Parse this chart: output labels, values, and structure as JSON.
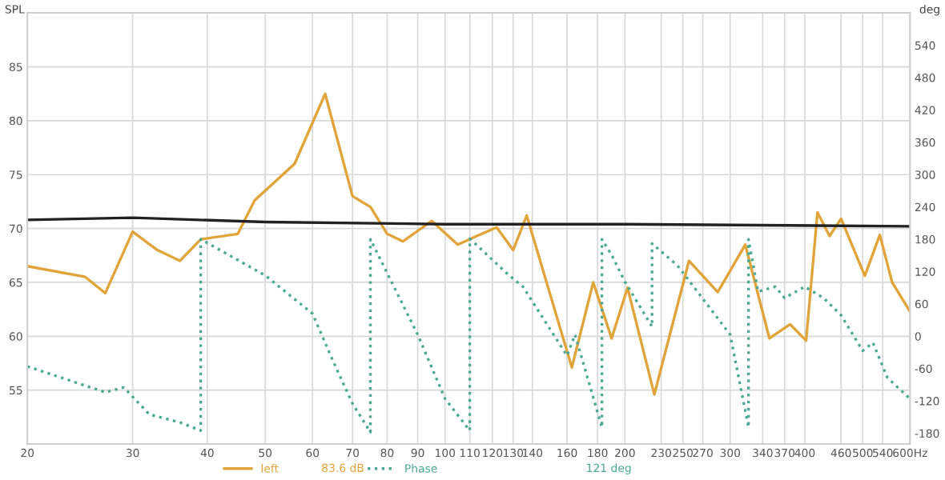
{
  "chart_data": {
    "type": "line",
    "ylabel": "SPL",
    "y2label": "deg",
    "xlim": [
      20,
      600
    ],
    "ylim": [
      50,
      90
    ],
    "y2lim": [
      -200,
      600
    ],
    "log": "x",
    "xticks": [
      20,
      30,
      40,
      50,
      60,
      70,
      80,
      90,
      100,
      110,
      120,
      130,
      140,
      160,
      180,
      200,
      230,
      250,
      270,
      300,
      340,
      370,
      400,
      460,
      500,
      540,
      {
        "value": 600,
        "label": "600Hz"
      }
    ],
    "yticks": [
      55,
      60,
      65,
      70,
      75,
      80,
      85
    ],
    "y2ticks": [
      -180,
      -120,
      -60,
      0,
      60,
      120,
      180,
      240,
      300,
      360,
      420,
      480,
      540
    ],
    "grid": true,
    "legend": "bottom",
    "annotations": [
      "83.6 dB",
      "121 deg"
    ],
    "series": [
      {
        "name": "left",
        "color": "#e0a43a",
        "line_style": "solid",
        "x": [
          20,
          25,
          27,
          30,
          33,
          36,
          39,
          45,
          48,
          56,
          63,
          70,
          75,
          80,
          85,
          95,
          105,
          110,
          113,
          122,
          130,
          137,
          163,
          177,
          190,
          202,
          224,
          256,
          286,
          318,
          349,
          378,
          402,
          420,
          440,
          460,
          504,
          534,
          560,
          600
        ],
        "values": [
          66.5,
          65.5,
          64,
          69.7,
          68,
          67,
          69,
          69.5,
          72.6,
          76,
          82.5,
          73,
          72,
          69.5,
          68.8,
          70.7,
          68.5,
          69,
          69.3,
          70.1,
          68,
          71.2,
          57.1,
          65,
          59.8,
          64.5,
          54.6,
          67,
          64.1,
          68.5,
          59.8,
          61.1,
          59.6,
          71.5,
          69.3,
          70.9,
          65.6,
          69.4,
          65,
          62.3
        ]
      },
      {
        "color": "#222222",
        "line_style": "solid",
        "x": [
          20,
          30,
          50,
          100,
          200,
          600
        ],
        "values": [
          70.8,
          71,
          70.6,
          70.4,
          70.4,
          70.2
        ]
      },
      {
        "name": "Phase",
        "color": "#4aa894",
        "line_style": "dotted",
        "axis": "y2",
        "x": [
          20,
          27,
          29,
          32,
          36,
          39,
          39,
          50,
          60,
          65,
          70,
          75,
          75,
          90,
          100,
          110,
          110,
          128,
          135,
          160,
          165,
          183,
          183,
          190,
          200,
          222,
          222,
          245,
          300,
          322,
          322,
          334,
          357,
          370,
          400,
          430,
          460,
          500,
          520,
          550,
          600
        ],
        "values": [
          -56,
          -104,
          -95,
          -145,
          -160,
          -175,
          180,
          113,
          42,
          -47,
          -125,
          -178,
          180,
          3,
          -116,
          -175,
          181,
          113,
          92,
          -36,
          3,
          -169,
          180,
          151,
          101,
          18,
          172,
          131,
          3,
          -169,
          180,
          83,
          92,
          71,
          92,
          71,
          39,
          -27,
          -12,
          -77,
          -116
        ]
      }
    ]
  }
}
